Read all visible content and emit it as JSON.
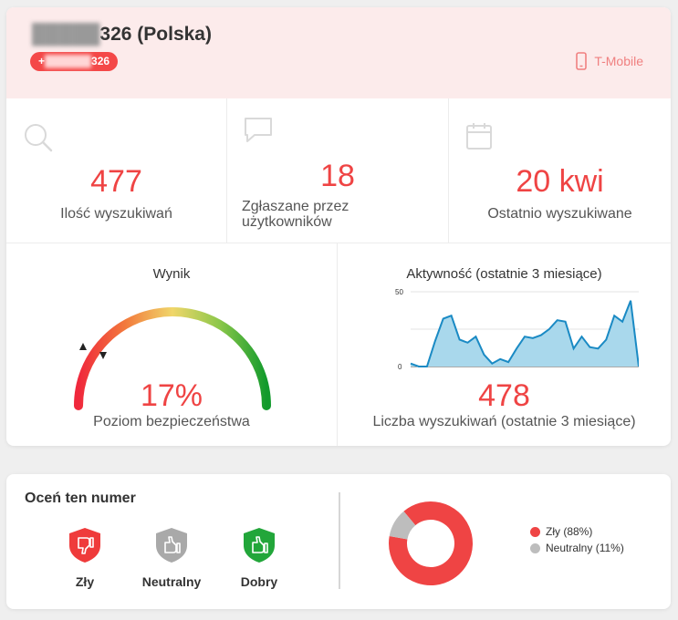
{
  "header": {
    "number_masked": "█████",
    "number_suffix": "326 (Polska)",
    "badge_prefix": "+",
    "badge_masked": "██████",
    "badge_suffix": "326",
    "operator": "T-Mobile"
  },
  "stats": [
    {
      "icon": "search-icon",
      "value": "477",
      "label": "Ilość wyszukiwań"
    },
    {
      "icon": "comment-icon",
      "value": "18",
      "label": "Zgłaszane przez użytkowników"
    },
    {
      "icon": "calendar-icon",
      "value": "20 kwi",
      "label": "Ostatnio wyszukiwane"
    }
  ],
  "score": {
    "title": "Wynik",
    "percent": "17%",
    "value": 17,
    "label": "Poziom bezpieczeństwa"
  },
  "activity": {
    "title": "Aktywność (ostatnie 3 miesiące)",
    "count": "478",
    "label": "Liczba wyszukiwań (ostatnie 3 miesiące)"
  },
  "chart_data": [
    {
      "type": "area",
      "title": "Aktywność (ostatnie 3 miesiące)",
      "yticks": [
        "50",
        "0"
      ],
      "ylim": [
        0,
        50
      ],
      "values": [
        2,
        0,
        0,
        17,
        32,
        34,
        18,
        16,
        20,
        8,
        2,
        5,
        3,
        12,
        20,
        19,
        21,
        25,
        31,
        30,
        12,
        20,
        13,
        12,
        18,
        34,
        30,
        44,
        0
      ],
      "grid": true,
      "colors": {
        "line": "#1a8ac4",
        "fill": "#a9d8ec"
      }
    },
    {
      "type": "pie",
      "slices": [
        {
          "label": "Zły (88%)",
          "value": 88,
          "color": "#ef4444"
        },
        {
          "label": "Neutralny (11%)",
          "value": 11,
          "color": "#bdbdbd"
        }
      ]
    }
  ],
  "rate": {
    "title": "Oceń ten numer",
    "buttons": [
      {
        "label": "Zły",
        "color": "#ef3b3b",
        "icon": "thumbs-down-icon"
      },
      {
        "label": "Neutralny",
        "color": "#a9a9a9",
        "icon": "thumbs-up-icon"
      },
      {
        "label": "Dobry",
        "color": "#22a63a",
        "icon": "thumbs-up-icon"
      }
    ]
  },
  "colors": {
    "accent": "#ef4444",
    "header_bg": "#fcebeb"
  }
}
